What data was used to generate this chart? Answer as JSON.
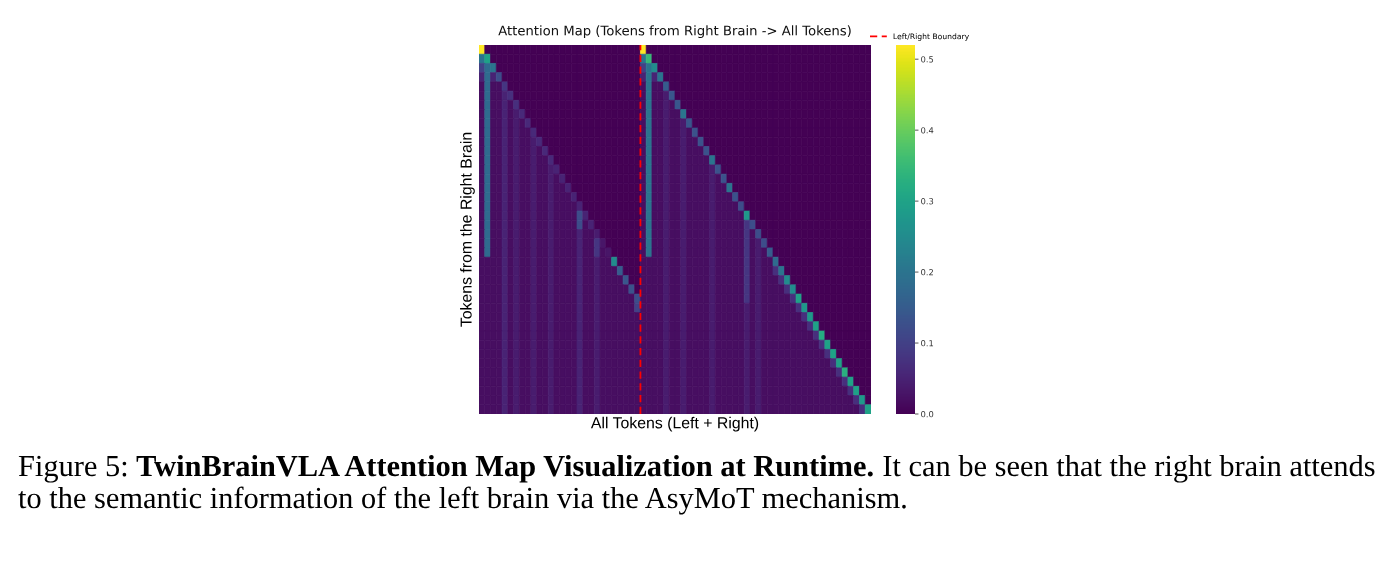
{
  "chart_data": {
    "type": "heatmap",
    "title": "Attention Map (Tokens from Right Brain -> All Tokens)",
    "xlabel": "All Tokens (Left + Right)",
    "ylabel": "Tokens from the Right Brain",
    "categories": [
      null,
      null,
      null,
      null,
      null,
      null,
      null,
      null,
      null,
      null,
      null,
      null,
      null,
      null,
      null,
      null,
      null,
      null,
      null,
      null,
      null,
      null,
      null,
      null,
      null,
      null,
      null,
      null,
      null,
      null,
      null,
      null,
      null,
      null,
      null,
      null,
      null,
      null,
      null,
      null,
      null,
      null,
      null,
      null,
      null,
      null,
      null,
      null,
      null,
      null,
      null,
      null,
      null,
      null,
      null,
      null,
      null,
      null,
      null,
      null,
      null,
      null,
      null,
      null,
      null,
      null,
      null,
      null
    ],
    "y_categories": [
      null,
      null,
      null,
      null,
      null,
      null,
      null,
      null,
      null,
      null,
      null,
      null,
      null,
      null,
      null,
      null,
      null,
      null,
      null,
      null,
      null,
      null,
      null,
      null,
      null,
      null,
      null,
      null,
      null,
      null,
      null,
      null,
      null,
      null,
      null,
      null,
      null,
      null,
      null,
      null
    ],
    "tick_labels": false,
    "cells": [
      [
        0.52,
        0,
        0,
        0,
        0,
        0,
        0,
        0,
        0,
        0,
        0,
        0,
        0,
        0,
        0,
        0,
        0,
        0,
        0,
        0,
        0,
        0,
        0,
        0,
        0,
        0,
        0,
        0,
        0.52,
        0,
        0,
        0,
        0,
        0,
        0,
        0,
        0,
        0,
        0,
        0,
        0,
        0,
        0,
        0,
        0,
        0,
        0,
        0,
        0,
        0,
        0,
        0,
        0,
        0,
        0,
        0,
        0,
        0,
        0,
        0,
        0,
        0,
        0,
        0,
        0,
        0,
        0,
        0
      ],
      [
        0.2,
        0.3,
        0,
        0,
        0,
        0,
        0,
        0,
        0,
        0,
        0,
        0,
        0,
        0,
        0,
        0,
        0,
        0,
        0,
        0,
        0,
        0,
        0,
        0,
        0,
        0,
        0,
        0,
        0.2,
        0.35,
        0,
        0,
        0,
        0,
        0,
        0,
        0,
        0,
        0,
        0,
        0,
        0,
        0,
        0,
        0,
        0,
        0,
        0,
        0,
        0,
        0,
        0,
        0,
        0,
        0,
        0,
        0,
        0,
        0,
        0,
        0,
        0,
        0,
        0,
        0,
        0,
        0,
        0
      ],
      [
        0.1,
        0.18,
        0.2,
        0,
        0,
        0,
        0,
        0,
        0,
        0,
        0,
        0,
        0,
        0,
        0,
        0,
        0,
        0,
        0,
        0,
        0,
        0,
        0,
        0,
        0,
        0,
        0,
        0,
        0.1,
        0.2,
        0.25,
        0,
        0,
        0,
        0,
        0,
        0,
        0,
        0,
        0,
        0,
        0,
        0,
        0,
        0,
        0,
        0,
        0,
        0,
        0,
        0,
        0,
        0,
        0,
        0,
        0,
        0,
        0,
        0,
        0,
        0,
        0,
        0,
        0,
        0,
        0,
        0,
        0
      ],
      [
        0.05,
        0.18,
        0.05,
        0.12,
        0,
        0,
        0,
        0,
        0,
        0,
        0,
        0,
        0,
        0,
        0,
        0,
        0,
        0,
        0,
        0,
        0,
        0,
        0,
        0,
        0,
        0,
        0,
        0,
        0.05,
        0.2,
        0.05,
        0.2,
        0,
        0,
        0,
        0,
        0,
        0,
        0,
        0,
        0,
        0,
        0,
        0,
        0,
        0,
        0,
        0,
        0,
        0,
        0,
        0,
        0,
        0,
        0,
        0,
        0,
        0,
        0,
        0,
        0,
        0,
        0,
        0,
        0,
        0,
        0,
        0
      ],
      [
        0.02,
        0.18,
        0.02,
        0.02,
        0.08,
        0,
        0,
        0,
        0,
        0,
        0,
        0,
        0,
        0,
        0,
        0,
        0,
        0,
        0,
        0,
        0,
        0,
        0,
        0,
        0,
        0,
        0,
        0,
        0.02,
        0.2,
        0.02,
        0.02,
        0.15,
        0,
        0,
        0,
        0,
        0,
        0,
        0,
        0,
        0,
        0,
        0,
        0,
        0,
        0,
        0,
        0,
        0,
        0,
        0,
        0,
        0,
        0,
        0,
        0,
        0,
        0,
        0,
        0,
        0,
        0,
        0,
        0,
        0,
        0,
        0
      ],
      [
        0.02,
        0.18,
        0.02,
        0.02,
        0.05,
        0.07,
        0,
        0,
        0,
        0,
        0,
        0,
        0,
        0,
        0,
        0,
        0,
        0,
        0,
        0,
        0,
        0,
        0,
        0,
        0,
        0,
        0,
        0,
        0.02,
        0.2,
        0.02,
        0.02,
        0.04,
        0.14,
        0,
        0,
        0,
        0,
        0,
        0,
        0,
        0,
        0,
        0,
        0,
        0,
        0,
        0,
        0,
        0,
        0,
        0,
        0,
        0,
        0,
        0,
        0,
        0,
        0,
        0,
        0,
        0,
        0,
        0,
        0,
        0,
        0,
        0
      ],
      [
        0.02,
        0.18,
        0.02,
        0.02,
        0.05,
        0.02,
        0.07,
        0,
        0,
        0,
        0,
        0,
        0,
        0,
        0,
        0,
        0,
        0,
        0,
        0,
        0,
        0,
        0,
        0,
        0,
        0,
        0,
        0,
        0.02,
        0.2,
        0.02,
        0.02,
        0.04,
        0.02,
        0.14,
        0,
        0,
        0,
        0,
        0,
        0,
        0,
        0,
        0,
        0,
        0,
        0,
        0,
        0,
        0,
        0,
        0,
        0,
        0,
        0,
        0,
        0,
        0,
        0,
        0,
        0,
        0,
        0,
        0,
        0,
        0,
        0,
        0
      ],
      [
        0.02,
        0.18,
        0.02,
        0.02,
        0.05,
        0.02,
        0.04,
        0.06,
        0,
        0,
        0,
        0,
        0,
        0,
        0,
        0,
        0,
        0,
        0,
        0,
        0,
        0,
        0,
        0,
        0,
        0,
        0,
        0,
        0.02,
        0.2,
        0.02,
        0.02,
        0.04,
        0.02,
        0.02,
        0.2,
        0,
        0,
        0,
        0,
        0,
        0,
        0,
        0,
        0,
        0,
        0,
        0,
        0,
        0,
        0,
        0,
        0,
        0,
        0,
        0,
        0,
        0,
        0,
        0,
        0,
        0,
        0,
        0,
        0,
        0,
        0,
        0
      ],
      [
        0.02,
        0.18,
        0.02,
        0.02,
        0.05,
        0.02,
        0.04,
        0.02,
        0.06,
        0,
        0,
        0,
        0,
        0,
        0,
        0,
        0,
        0,
        0,
        0,
        0,
        0,
        0,
        0,
        0,
        0,
        0,
        0,
        0.02,
        0.2,
        0.02,
        0.02,
        0.04,
        0.02,
        0.02,
        0.04,
        0.14,
        0,
        0,
        0,
        0,
        0,
        0,
        0,
        0,
        0,
        0,
        0,
        0,
        0,
        0,
        0,
        0,
        0,
        0,
        0,
        0,
        0,
        0,
        0,
        0,
        0,
        0,
        0,
        0,
        0,
        0,
        0
      ],
      [
        0.02,
        0.18,
        0.02,
        0.02,
        0.05,
        0.02,
        0.04,
        0.02,
        0.02,
        0.06,
        0,
        0,
        0,
        0,
        0,
        0,
        0,
        0,
        0,
        0,
        0,
        0,
        0,
        0,
        0,
        0,
        0,
        0,
        0.02,
        0.2,
        0.02,
        0.02,
        0.04,
        0.02,
        0.02,
        0.04,
        0.02,
        0.13,
        0,
        0,
        0,
        0,
        0,
        0,
        0,
        0,
        0,
        0,
        0,
        0,
        0,
        0,
        0,
        0,
        0,
        0,
        0,
        0,
        0,
        0,
        0,
        0,
        0,
        0,
        0,
        0,
        0,
        0
      ],
      [
        0.02,
        0.18,
        0.02,
        0.02,
        0.05,
        0.02,
        0.04,
        0.02,
        0.02,
        0.04,
        0.06,
        0,
        0,
        0,
        0,
        0,
        0,
        0,
        0,
        0,
        0,
        0,
        0,
        0,
        0,
        0,
        0,
        0,
        0.02,
        0.2,
        0.02,
        0.02,
        0.04,
        0.02,
        0.02,
        0.04,
        0.02,
        0.02,
        0.13,
        0,
        0,
        0,
        0,
        0,
        0,
        0,
        0,
        0,
        0,
        0,
        0,
        0,
        0,
        0,
        0,
        0,
        0,
        0,
        0,
        0,
        0,
        0,
        0,
        0,
        0,
        0,
        0,
        0
      ],
      [
        0.02,
        0.18,
        0.02,
        0.02,
        0.05,
        0.02,
        0.04,
        0.02,
        0.02,
        0.04,
        0.02,
        0.06,
        0,
        0,
        0,
        0,
        0,
        0,
        0,
        0,
        0,
        0,
        0,
        0,
        0,
        0,
        0,
        0,
        0.02,
        0.2,
        0.02,
        0.02,
        0.04,
        0.02,
        0.02,
        0.04,
        0.02,
        0.02,
        0.02,
        0.13,
        0,
        0,
        0,
        0,
        0,
        0,
        0,
        0,
        0,
        0,
        0,
        0,
        0,
        0,
        0,
        0,
        0,
        0,
        0,
        0,
        0,
        0,
        0,
        0,
        0,
        0,
        0,
        0
      ],
      [
        0.02,
        0.18,
        0.02,
        0.02,
        0.05,
        0.02,
        0.04,
        0.02,
        0.02,
        0.04,
        0.02,
        0.02,
        0.06,
        0,
        0,
        0,
        0,
        0,
        0,
        0,
        0,
        0,
        0,
        0,
        0,
        0,
        0,
        0,
        0.02,
        0.2,
        0.02,
        0.02,
        0.04,
        0.02,
        0.02,
        0.04,
        0.02,
        0.02,
        0.02,
        0.02,
        0.2,
        0,
        0,
        0,
        0,
        0,
        0,
        0,
        0,
        0,
        0,
        0,
        0,
        0,
        0,
        0,
        0,
        0,
        0,
        0,
        0,
        0,
        0,
        0,
        0,
        0,
        0,
        0
      ],
      [
        0.02,
        0.18,
        0.02,
        0.02,
        0.05,
        0.02,
        0.04,
        0.02,
        0.02,
        0.04,
        0.02,
        0.02,
        0.04,
        0.05,
        0,
        0,
        0,
        0,
        0,
        0,
        0,
        0,
        0,
        0,
        0,
        0,
        0,
        0,
        0.02,
        0.2,
        0.02,
        0.02,
        0.04,
        0.02,
        0.02,
        0.04,
        0.02,
        0.02,
        0.02,
        0.02,
        0.04,
        0.13,
        0,
        0,
        0,
        0,
        0,
        0,
        0,
        0,
        0,
        0,
        0,
        0,
        0,
        0,
        0,
        0,
        0,
        0,
        0,
        0,
        0,
        0,
        0,
        0,
        0,
        0
      ],
      [
        0.02,
        0.18,
        0.02,
        0.02,
        0.05,
        0.02,
        0.04,
        0.02,
        0.02,
        0.04,
        0.02,
        0.02,
        0.04,
        0.02,
        0.05,
        0,
        0,
        0,
        0,
        0,
        0,
        0,
        0,
        0,
        0,
        0,
        0,
        0,
        0.02,
        0.2,
        0.02,
        0.02,
        0.04,
        0.02,
        0.02,
        0.04,
        0.02,
        0.02,
        0.02,
        0.02,
        0.04,
        0.02,
        0.13,
        0,
        0,
        0,
        0,
        0,
        0,
        0,
        0,
        0,
        0,
        0,
        0,
        0,
        0,
        0,
        0,
        0,
        0,
        0,
        0,
        0,
        0,
        0,
        0,
        0
      ],
      [
        0.02,
        0.18,
        0.02,
        0.02,
        0.05,
        0.02,
        0.04,
        0.02,
        0.02,
        0.04,
        0.02,
        0.02,
        0.04,
        0.02,
        0.02,
        0.05,
        0,
        0,
        0,
        0,
        0,
        0,
        0,
        0,
        0,
        0,
        0,
        0,
        0.02,
        0.2,
        0.02,
        0.02,
        0.04,
        0.02,
        0.02,
        0.04,
        0.02,
        0.02,
        0.02,
        0.02,
        0.04,
        0.02,
        0.02,
        0.2,
        0,
        0,
        0,
        0,
        0,
        0,
        0,
        0,
        0,
        0,
        0,
        0,
        0,
        0,
        0,
        0,
        0,
        0,
        0,
        0,
        0,
        0,
        0,
        0
      ],
      [
        0.02,
        0.18,
        0.02,
        0.02,
        0.05,
        0.02,
        0.04,
        0.02,
        0.02,
        0.04,
        0.02,
        0.02,
        0.04,
        0.02,
        0.02,
        0.02,
        0.05,
        0,
        0,
        0,
        0,
        0,
        0,
        0,
        0,
        0,
        0,
        0,
        0.02,
        0.2,
        0.02,
        0.02,
        0.04,
        0.02,
        0.02,
        0.04,
        0.02,
        0.02,
        0.02,
        0.02,
        0.04,
        0.02,
        0.02,
        0.02,
        0.13,
        0,
        0,
        0,
        0,
        0,
        0,
        0,
        0,
        0,
        0,
        0,
        0,
        0,
        0,
        0,
        0,
        0,
        0,
        0,
        0,
        0,
        0,
        0
      ],
      [
        0.02,
        0.18,
        0.02,
        0.02,
        0.05,
        0.02,
        0.04,
        0.02,
        0.02,
        0.04,
        0.02,
        0.02,
        0.04,
        0.02,
        0.02,
        0.02,
        0.02,
        0.05,
        0,
        0,
        0,
        0,
        0,
        0,
        0,
        0,
        0,
        0,
        0.02,
        0.2,
        0.02,
        0.02,
        0.04,
        0.02,
        0.02,
        0.04,
        0.02,
        0.02,
        0.02,
        0.02,
        0.04,
        0.02,
        0.02,
        0.02,
        0.02,
        0.12,
        0,
        0,
        0,
        0,
        0,
        0,
        0,
        0,
        0,
        0,
        0,
        0,
        0,
        0,
        0,
        0,
        0,
        0,
        0,
        0,
        0,
        0
      ],
      [
        0.02,
        0.18,
        0.02,
        0.02,
        0.05,
        0.02,
        0.04,
        0.02,
        0.02,
        0.04,
        0.02,
        0.02,
        0.04,
        0.02,
        0.02,
        0.02,
        0.02,
        0.12,
        0.05,
        0,
        0,
        0,
        0,
        0,
        0,
        0,
        0,
        0,
        0.02,
        0.2,
        0.02,
        0.02,
        0.04,
        0.02,
        0.02,
        0.04,
        0.02,
        0.02,
        0.02,
        0.02,
        0.04,
        0.02,
        0.02,
        0.02,
        0.02,
        0.02,
        0.28,
        0,
        0,
        0,
        0,
        0,
        0,
        0,
        0,
        0,
        0,
        0,
        0,
        0,
        0,
        0,
        0,
        0,
        0,
        0,
        0,
        0
      ],
      [
        0.02,
        0.18,
        0.02,
        0.02,
        0.05,
        0.02,
        0.04,
        0.02,
        0.02,
        0.04,
        0.02,
        0.02,
        0.04,
        0.02,
        0.02,
        0.02,
        0.02,
        0.12,
        0.02,
        0.05,
        0,
        0,
        0,
        0,
        0,
        0,
        0,
        0,
        0.02,
        0.2,
        0.02,
        0.02,
        0.04,
        0.02,
        0.02,
        0.04,
        0.02,
        0.02,
        0.02,
        0.02,
        0.04,
        0.02,
        0.02,
        0.02,
        0.02,
        0.02,
        0.08,
        0.12,
        0,
        0,
        0,
        0,
        0,
        0,
        0,
        0,
        0,
        0,
        0,
        0,
        0,
        0,
        0,
        0,
        0,
        0,
        0,
        0
      ],
      [
        0.02,
        0.18,
        0.02,
        0.02,
        0.05,
        0.02,
        0.04,
        0.02,
        0.02,
        0.04,
        0.02,
        0.02,
        0.04,
        0.02,
        0.02,
        0.02,
        0.02,
        0.05,
        0.02,
        0.02,
        0.04,
        0,
        0,
        0,
        0,
        0,
        0,
        0,
        0.02,
        0.2,
        0.02,
        0.02,
        0.04,
        0.02,
        0.02,
        0.04,
        0.02,
        0.02,
        0.02,
        0.02,
        0.04,
        0.02,
        0.02,
        0.02,
        0.02,
        0.02,
        0.08,
        0.02,
        0.12,
        0,
        0,
        0,
        0,
        0,
        0,
        0,
        0,
        0,
        0,
        0,
        0,
        0,
        0,
        0,
        0,
        0,
        0,
        0
      ],
      [
        0.02,
        0.18,
        0.02,
        0.02,
        0.05,
        0.02,
        0.04,
        0.02,
        0.02,
        0.04,
        0.02,
        0.02,
        0.04,
        0.02,
        0.02,
        0.02,
        0.02,
        0.05,
        0.02,
        0.02,
        0.08,
        0.03,
        0,
        0,
        0,
        0,
        0,
        0,
        0.02,
        0.2,
        0.02,
        0.02,
        0.04,
        0.02,
        0.02,
        0.04,
        0.02,
        0.02,
        0.02,
        0.02,
        0.04,
        0.02,
        0.02,
        0.02,
        0.02,
        0.02,
        0.08,
        0.02,
        0.04,
        0.12,
        0,
        0,
        0,
        0,
        0,
        0,
        0,
        0,
        0,
        0,
        0,
        0,
        0,
        0,
        0,
        0,
        0,
        0
      ],
      [
        0.02,
        0.18,
        0.02,
        0.02,
        0.05,
        0.02,
        0.04,
        0.02,
        0.02,
        0.04,
        0.02,
        0.02,
        0.04,
        0.02,
        0.02,
        0.02,
        0.02,
        0.05,
        0.02,
        0.02,
        0.08,
        0.02,
        0.03,
        0,
        0,
        0,
        0,
        0,
        0.02,
        0.2,
        0.02,
        0.02,
        0.04,
        0.02,
        0.02,
        0.04,
        0.02,
        0.02,
        0.02,
        0.02,
        0.04,
        0.02,
        0.02,
        0.02,
        0.02,
        0.02,
        0.08,
        0.02,
        0.04,
        0.02,
        0.15,
        0,
        0,
        0,
        0,
        0,
        0,
        0,
        0,
        0,
        0,
        0,
        0,
        0,
        0,
        0,
        0,
        0
      ],
      [
        0.02,
        0.02,
        0.02,
        0.02,
        0.05,
        0.02,
        0.04,
        0.02,
        0.02,
        0.04,
        0.02,
        0.02,
        0.04,
        0.02,
        0.02,
        0.02,
        0.02,
        0.05,
        0.02,
        0.02,
        0.04,
        0.02,
        0.02,
        0.25,
        0,
        0,
        0,
        0,
        0.02,
        0.02,
        0.02,
        0.02,
        0.04,
        0.02,
        0.02,
        0.04,
        0.02,
        0.02,
        0.02,
        0.02,
        0.04,
        0.02,
        0.02,
        0.02,
        0.02,
        0.02,
        0.08,
        0.02,
        0.04,
        0.02,
        0.02,
        0.18,
        0,
        0,
        0,
        0,
        0,
        0,
        0,
        0,
        0,
        0,
        0,
        0,
        0,
        0,
        0,
        0
      ],
      [
        0.02,
        0.02,
        0.02,
        0.02,
        0.05,
        0.02,
        0.04,
        0.02,
        0.02,
        0.04,
        0.02,
        0.02,
        0.04,
        0.02,
        0.02,
        0.02,
        0.02,
        0.05,
        0.02,
        0.02,
        0.04,
        0.02,
        0.02,
        0.02,
        0.15,
        0,
        0,
        0,
        0.02,
        0.02,
        0.02,
        0.02,
        0.04,
        0.02,
        0.02,
        0.04,
        0.02,
        0.02,
        0.02,
        0.02,
        0.04,
        0.02,
        0.02,
        0.02,
        0.02,
        0.02,
        0.08,
        0.02,
        0.04,
        0.02,
        0.02,
        0.07,
        0.2,
        0,
        0,
        0,
        0,
        0,
        0,
        0,
        0,
        0,
        0,
        0,
        0,
        0,
        0,
        0
      ],
      [
        0.02,
        0.02,
        0.02,
        0.02,
        0.05,
        0.02,
        0.04,
        0.02,
        0.02,
        0.04,
        0.02,
        0.02,
        0.04,
        0.02,
        0.02,
        0.02,
        0.02,
        0.05,
        0.02,
        0.02,
        0.04,
        0.02,
        0.02,
        0.02,
        0.02,
        0.14,
        0,
        0,
        0.02,
        0.02,
        0.02,
        0.02,
        0.04,
        0.02,
        0.02,
        0.04,
        0.02,
        0.02,
        0.02,
        0.02,
        0.04,
        0.02,
        0.02,
        0.02,
        0.02,
        0.02,
        0.08,
        0.02,
        0.04,
        0.02,
        0.02,
        0.02,
        0.07,
        0.25,
        0,
        0,
        0,
        0,
        0,
        0,
        0,
        0,
        0,
        0,
        0,
        0,
        0,
        0
      ],
      [
        0.02,
        0.02,
        0.02,
        0.02,
        0.05,
        0.02,
        0.04,
        0.02,
        0.02,
        0.04,
        0.02,
        0.02,
        0.04,
        0.02,
        0.02,
        0.02,
        0.02,
        0.05,
        0.02,
        0.02,
        0.04,
        0.02,
        0.02,
        0.02,
        0.02,
        0.02,
        0.13,
        0,
        0.02,
        0.02,
        0.02,
        0.02,
        0.04,
        0.02,
        0.02,
        0.04,
        0.02,
        0.02,
        0.02,
        0.02,
        0.04,
        0.02,
        0.02,
        0.02,
        0.02,
        0.02,
        0.08,
        0.02,
        0.04,
        0.02,
        0.02,
        0.02,
        0.02,
        0.07,
        0.25,
        0,
        0,
        0,
        0,
        0,
        0,
        0,
        0,
        0,
        0,
        0,
        0,
        0
      ],
      [
        0.02,
        0.02,
        0.02,
        0.02,
        0.05,
        0.02,
        0.04,
        0.02,
        0.02,
        0.04,
        0.02,
        0.02,
        0.04,
        0.02,
        0.02,
        0.02,
        0.02,
        0.05,
        0.02,
        0.02,
        0.04,
        0.02,
        0.02,
        0.02,
        0.02,
        0.02,
        0.02,
        0.12,
        0.02,
        0.02,
        0.02,
        0.02,
        0.04,
        0.02,
        0.02,
        0.04,
        0.02,
        0.02,
        0.02,
        0.02,
        0.04,
        0.02,
        0.02,
        0.02,
        0.02,
        0.02,
        0.08,
        0.02,
        0.04,
        0.02,
        0.02,
        0.02,
        0.02,
        0.02,
        0.07,
        0.3,
        0,
        0,
        0,
        0,
        0,
        0,
        0,
        0,
        0,
        0,
        0,
        0
      ],
      [
        0.02,
        0.02,
        0.02,
        0.02,
        0.05,
        0.02,
        0.04,
        0.02,
        0.02,
        0.04,
        0.02,
        0.02,
        0.04,
        0.02,
        0.02,
        0.02,
        0.02,
        0.05,
        0.02,
        0.02,
        0.04,
        0.02,
        0.02,
        0.02,
        0.02,
        0.02,
        0.02,
        0.1,
        0.02,
        0.02,
        0.02,
        0.02,
        0.04,
        0.02,
        0.02,
        0.04,
        0.02,
        0.02,
        0.02,
        0.02,
        0.04,
        0.02,
        0.02,
        0.02,
        0.02,
        0.02,
        0.04,
        0.02,
        0.04,
        0.02,
        0.02,
        0.02,
        0.02,
        0.02,
        0.02,
        0.07,
        0.28,
        0,
        0,
        0,
        0,
        0,
        0,
        0,
        0,
        0,
        0,
        0
      ],
      [
        0.02,
        0.02,
        0.02,
        0.02,
        0.05,
        0.02,
        0.04,
        0.02,
        0.02,
        0.04,
        0.02,
        0.02,
        0.04,
        0.02,
        0.02,
        0.02,
        0.02,
        0.05,
        0.02,
        0.02,
        0.04,
        0.02,
        0.02,
        0.02,
        0.02,
        0.02,
        0.02,
        0.02,
        0.02,
        0.02,
        0.02,
        0.02,
        0.04,
        0.02,
        0.02,
        0.04,
        0.02,
        0.02,
        0.02,
        0.02,
        0.04,
        0.02,
        0.02,
        0.02,
        0.02,
        0.02,
        0.04,
        0.02,
        0.04,
        0.02,
        0.02,
        0.02,
        0.02,
        0.02,
        0.02,
        0.02,
        0.07,
        0.28,
        0,
        0,
        0,
        0,
        0,
        0,
        0,
        0,
        0,
        0
      ],
      [
        0.02,
        0.02,
        0.02,
        0.02,
        0.05,
        0.02,
        0.04,
        0.02,
        0.02,
        0.04,
        0.02,
        0.02,
        0.04,
        0.02,
        0.02,
        0.02,
        0.02,
        0.05,
        0.02,
        0.02,
        0.04,
        0.02,
        0.02,
        0.02,
        0.02,
        0.02,
        0.02,
        0.02,
        0.02,
        0.02,
        0.02,
        0.02,
        0.04,
        0.02,
        0.02,
        0.04,
        0.02,
        0.02,
        0.02,
        0.02,
        0.04,
        0.02,
        0.02,
        0.02,
        0.02,
        0.02,
        0.04,
        0.02,
        0.04,
        0.02,
        0.02,
        0.02,
        0.02,
        0.02,
        0.02,
        0.02,
        0.02,
        0.07,
        0.3,
        0,
        0,
        0,
        0,
        0,
        0,
        0,
        0,
        0
      ],
      [
        0.02,
        0.02,
        0.02,
        0.02,
        0.05,
        0.02,
        0.04,
        0.02,
        0.02,
        0.04,
        0.02,
        0.02,
        0.04,
        0.02,
        0.02,
        0.02,
        0.02,
        0.05,
        0.02,
        0.02,
        0.04,
        0.02,
        0.02,
        0.02,
        0.02,
        0.02,
        0.02,
        0.02,
        0.02,
        0.02,
        0.02,
        0.02,
        0.04,
        0.02,
        0.02,
        0.04,
        0.02,
        0.02,
        0.02,
        0.02,
        0.04,
        0.02,
        0.02,
        0.02,
        0.02,
        0.02,
        0.04,
        0.02,
        0.04,
        0.02,
        0.02,
        0.02,
        0.02,
        0.02,
        0.02,
        0.02,
        0.02,
        0.02,
        0.07,
        0.32,
        0,
        0,
        0,
        0,
        0,
        0,
        0,
        0
      ],
      [
        0.02,
        0.02,
        0.02,
        0.02,
        0.05,
        0.02,
        0.04,
        0.02,
        0.02,
        0.04,
        0.02,
        0.02,
        0.04,
        0.02,
        0.02,
        0.02,
        0.02,
        0.05,
        0.02,
        0.02,
        0.04,
        0.02,
        0.02,
        0.02,
        0.02,
        0.02,
        0.02,
        0.02,
        0.02,
        0.02,
        0.02,
        0.02,
        0.04,
        0.02,
        0.02,
        0.04,
        0.02,
        0.02,
        0.02,
        0.02,
        0.04,
        0.02,
        0.02,
        0.02,
        0.02,
        0.02,
        0.04,
        0.02,
        0.04,
        0.02,
        0.02,
        0.02,
        0.02,
        0.02,
        0.02,
        0.02,
        0.02,
        0.02,
        0.02,
        0.07,
        0.3,
        0,
        0,
        0,
        0,
        0,
        0,
        0
      ],
      [
        0.02,
        0.02,
        0.02,
        0.02,
        0.05,
        0.02,
        0.04,
        0.02,
        0.02,
        0.04,
        0.02,
        0.02,
        0.04,
        0.02,
        0.02,
        0.02,
        0.02,
        0.05,
        0.02,
        0.02,
        0.04,
        0.02,
        0.02,
        0.02,
        0.02,
        0.02,
        0.02,
        0.02,
        0.02,
        0.02,
        0.02,
        0.02,
        0.04,
        0.02,
        0.02,
        0.04,
        0.02,
        0.02,
        0.02,
        0.02,
        0.04,
        0.02,
        0.02,
        0.02,
        0.02,
        0.02,
        0.04,
        0.02,
        0.04,
        0.02,
        0.02,
        0.02,
        0.02,
        0.02,
        0.02,
        0.02,
        0.02,
        0.02,
        0.02,
        0.02,
        0.07,
        0.3,
        0,
        0,
        0,
        0,
        0,
        0
      ],
      [
        0.02,
        0.02,
        0.02,
        0.02,
        0.05,
        0.02,
        0.04,
        0.02,
        0.02,
        0.04,
        0.02,
        0.02,
        0.04,
        0.02,
        0.02,
        0.02,
        0.02,
        0.05,
        0.02,
        0.02,
        0.04,
        0.02,
        0.02,
        0.02,
        0.02,
        0.02,
        0.02,
        0.02,
        0.02,
        0.02,
        0.02,
        0.02,
        0.04,
        0.02,
        0.02,
        0.04,
        0.02,
        0.02,
        0.02,
        0.02,
        0.04,
        0.02,
        0.02,
        0.02,
        0.02,
        0.02,
        0.04,
        0.02,
        0.04,
        0.02,
        0.02,
        0.02,
        0.02,
        0.02,
        0.02,
        0.02,
        0.02,
        0.02,
        0.02,
        0.02,
        0.02,
        0.07,
        0.3,
        0,
        0,
        0,
        0,
        0
      ],
      [
        0.02,
        0.02,
        0.02,
        0.02,
        0.05,
        0.02,
        0.04,
        0.02,
        0.02,
        0.04,
        0.02,
        0.02,
        0.04,
        0.02,
        0.02,
        0.02,
        0.02,
        0.05,
        0.02,
        0.02,
        0.04,
        0.02,
        0.02,
        0.02,
        0.02,
        0.02,
        0.02,
        0.02,
        0.02,
        0.02,
        0.02,
        0.02,
        0.04,
        0.02,
        0.02,
        0.04,
        0.02,
        0.02,
        0.02,
        0.02,
        0.04,
        0.02,
        0.02,
        0.02,
        0.02,
        0.02,
        0.04,
        0.02,
        0.04,
        0.02,
        0.02,
        0.02,
        0.02,
        0.02,
        0.02,
        0.02,
        0.02,
        0.02,
        0.02,
        0.02,
        0.02,
        0.02,
        0.07,
        0.33,
        0,
        0,
        0,
        0
      ],
      [
        0.02,
        0.02,
        0.02,
        0.02,
        0.05,
        0.02,
        0.04,
        0.02,
        0.02,
        0.04,
        0.02,
        0.02,
        0.04,
        0.02,
        0.02,
        0.02,
        0.02,
        0.05,
        0.02,
        0.02,
        0.04,
        0.02,
        0.02,
        0.02,
        0.02,
        0.02,
        0.02,
        0.02,
        0.02,
        0.02,
        0.02,
        0.02,
        0.04,
        0.02,
        0.02,
        0.04,
        0.02,
        0.02,
        0.02,
        0.02,
        0.04,
        0.02,
        0.02,
        0.02,
        0.02,
        0.02,
        0.04,
        0.02,
        0.04,
        0.02,
        0.02,
        0.02,
        0.02,
        0.02,
        0.02,
        0.02,
        0.02,
        0.02,
        0.02,
        0.02,
        0.02,
        0.02,
        0.02,
        0.07,
        0.3,
        0,
        0,
        0
      ],
      [
        0.02,
        0.02,
        0.02,
        0.02,
        0.05,
        0.02,
        0.04,
        0.02,
        0.02,
        0.04,
        0.02,
        0.02,
        0.04,
        0.02,
        0.02,
        0.02,
        0.02,
        0.05,
        0.02,
        0.02,
        0.04,
        0.02,
        0.02,
        0.02,
        0.02,
        0.02,
        0.02,
        0.02,
        0.02,
        0.02,
        0.02,
        0.02,
        0.04,
        0.02,
        0.02,
        0.04,
        0.02,
        0.02,
        0.02,
        0.02,
        0.04,
        0.02,
        0.02,
        0.02,
        0.02,
        0.02,
        0.04,
        0.02,
        0.04,
        0.02,
        0.02,
        0.02,
        0.02,
        0.02,
        0.02,
        0.02,
        0.02,
        0.02,
        0.02,
        0.02,
        0.02,
        0.02,
        0.02,
        0.02,
        0.07,
        0.3,
        0,
        0
      ],
      [
        0.02,
        0.02,
        0.02,
        0.02,
        0.05,
        0.02,
        0.04,
        0.02,
        0.02,
        0.04,
        0.02,
        0.02,
        0.04,
        0.02,
        0.02,
        0.02,
        0.02,
        0.05,
        0.02,
        0.02,
        0.04,
        0.02,
        0.02,
        0.02,
        0.02,
        0.02,
        0.02,
        0.02,
        0.02,
        0.02,
        0.02,
        0.02,
        0.04,
        0.02,
        0.02,
        0.04,
        0.02,
        0.02,
        0.02,
        0.02,
        0.04,
        0.02,
        0.02,
        0.02,
        0.02,
        0.02,
        0.04,
        0.02,
        0.04,
        0.02,
        0.02,
        0.02,
        0.02,
        0.02,
        0.02,
        0.02,
        0.02,
        0.02,
        0.02,
        0.02,
        0.02,
        0.02,
        0.02,
        0.02,
        0.02,
        0.07,
        0.28,
        0
      ],
      [
        0.02,
        0.02,
        0.02,
        0.02,
        0.05,
        0.02,
        0.04,
        0.02,
        0.02,
        0.04,
        0.02,
        0.02,
        0.04,
        0.02,
        0.02,
        0.02,
        0.02,
        0.05,
        0.02,
        0.02,
        0.04,
        0.02,
        0.02,
        0.02,
        0.02,
        0.02,
        0.02,
        0.02,
        0.02,
        0.02,
        0.02,
        0.02,
        0.04,
        0.02,
        0.02,
        0.04,
        0.02,
        0.02,
        0.02,
        0.02,
        0.04,
        0.02,
        0.02,
        0.02,
        0.02,
        0.02,
        0.04,
        0.02,
        0.04,
        0.02,
        0.02,
        0.02,
        0.02,
        0.02,
        0.02,
        0.02,
        0.02,
        0.02,
        0.02,
        0.02,
        0.02,
        0.02,
        0.02,
        0.02,
        0.02,
        0.02,
        0.07,
        0.3
      ]
    ],
    "clim": [
      0,
      0.52
    ],
    "cticks": [
      {
        "value": 0,
        "label": "0.0"
      },
      {
        "value": 0.1,
        "label": "0.1"
      },
      {
        "value": 0.2,
        "label": "0.2"
      },
      {
        "value": 0.3,
        "label": "0.3"
      },
      {
        "value": 0.4,
        "label": "0.4"
      },
      {
        "value": 0.5,
        "label": "0.5"
      }
    ],
    "annotations": [
      "Left/Right Boundary",
      "Figure 5:",
      "TwinBrainVLA Attention Map Visualization at Runtime.",
      "It can be seen that the right brain attends",
      "to the semantic information of the left brain via the AsyMoT mechanism."
    ]
  }
}
